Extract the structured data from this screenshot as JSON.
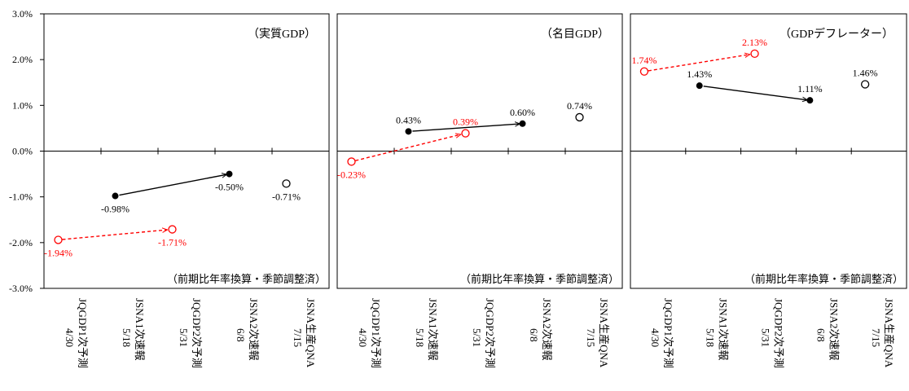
{
  "chart_data": {
    "type": "line",
    "ylim": [
      -3.0,
      3.0
    ],
    "y_ticks": [
      "-3.0%",
      "-2.0%",
      "-1.0%",
      "0.0%",
      "1.0%",
      "2.0%",
      "3.0%"
    ],
    "y_tick_values": [
      -3,
      -2,
      -1,
      0,
      1,
      2,
      3
    ],
    "categories": [
      [
        "JQGDP1次予測",
        "4/30"
      ],
      [
        "JSNA1次速報",
        "5/18"
      ],
      [
        "JQGDP2次予測",
        "5/31"
      ],
      [
        "JSNA2次速報",
        "6/8"
      ],
      [
        "JSNA生産QNA",
        "7/15"
      ]
    ],
    "colors": {
      "jsna": "#000000",
      "jqgdp": "#ff0000"
    },
    "note": "（前期比年率換算・季節調整済）",
    "panels": [
      {
        "title": "（実質GDP）",
        "points": [
          {
            "x": 0.25,
            "y": -1.94,
            "label": "-1.94%",
            "color": "jqgdp",
            "marker": "open"
          },
          {
            "x": 1.25,
            "y": -0.98,
            "label": "-0.98%",
            "color": "jsna",
            "marker": "filled"
          },
          {
            "x": 2.25,
            "y": -1.71,
            "label": "-1.71%",
            "color": "jqgdp",
            "marker": "open"
          },
          {
            "x": 3.25,
            "y": -0.5,
            "label": "-0.50%",
            "color": "jsna",
            "marker": "filled"
          },
          {
            "x": 4.25,
            "y": -0.71,
            "label": "-0.71%",
            "color": "jsna",
            "marker": "open"
          }
        ]
      },
      {
        "title": "（名目GDP）",
        "points": [
          {
            "x": 0.25,
            "y": -0.23,
            "label": "-0.23%",
            "color": "jqgdp",
            "marker": "open"
          },
          {
            "x": 1.25,
            "y": 0.43,
            "label": "0.43%",
            "color": "jsna",
            "marker": "filled"
          },
          {
            "x": 2.25,
            "y": 0.39,
            "label": "0.39%",
            "color": "jqgdp",
            "marker": "open"
          },
          {
            "x": 3.25,
            "y": 0.6,
            "label": "0.60%",
            "color": "jsna",
            "marker": "filled"
          },
          {
            "x": 4.25,
            "y": 0.74,
            "label": "0.74%",
            "color": "jsna",
            "marker": "open"
          }
        ]
      },
      {
        "title": "（GDPデフレーター）",
        "points": [
          {
            "x": 0.25,
            "y": 1.74,
            "label": "1.74%",
            "color": "jqgdp",
            "marker": "open"
          },
          {
            "x": 1.25,
            "y": 1.43,
            "label": "1.43%",
            "color": "jsna",
            "marker": "filled"
          },
          {
            "x": 2.25,
            "y": 2.13,
            "label": "2.13%",
            "color": "jqgdp",
            "marker": "open"
          },
          {
            "x": 3.25,
            "y": 1.11,
            "label": "1.11%",
            "color": "jsna",
            "marker": "filled"
          },
          {
            "x": 4.25,
            "y": 1.46,
            "label": "1.46%",
            "color": "jsna",
            "marker": "open"
          }
        ]
      }
    ],
    "arrows": [
      {
        "from": 0,
        "to": 2,
        "color": "jqgdp",
        "style": "dashed"
      },
      {
        "from": 1,
        "to": 3,
        "color": "jsna",
        "style": "solid"
      }
    ]
  }
}
